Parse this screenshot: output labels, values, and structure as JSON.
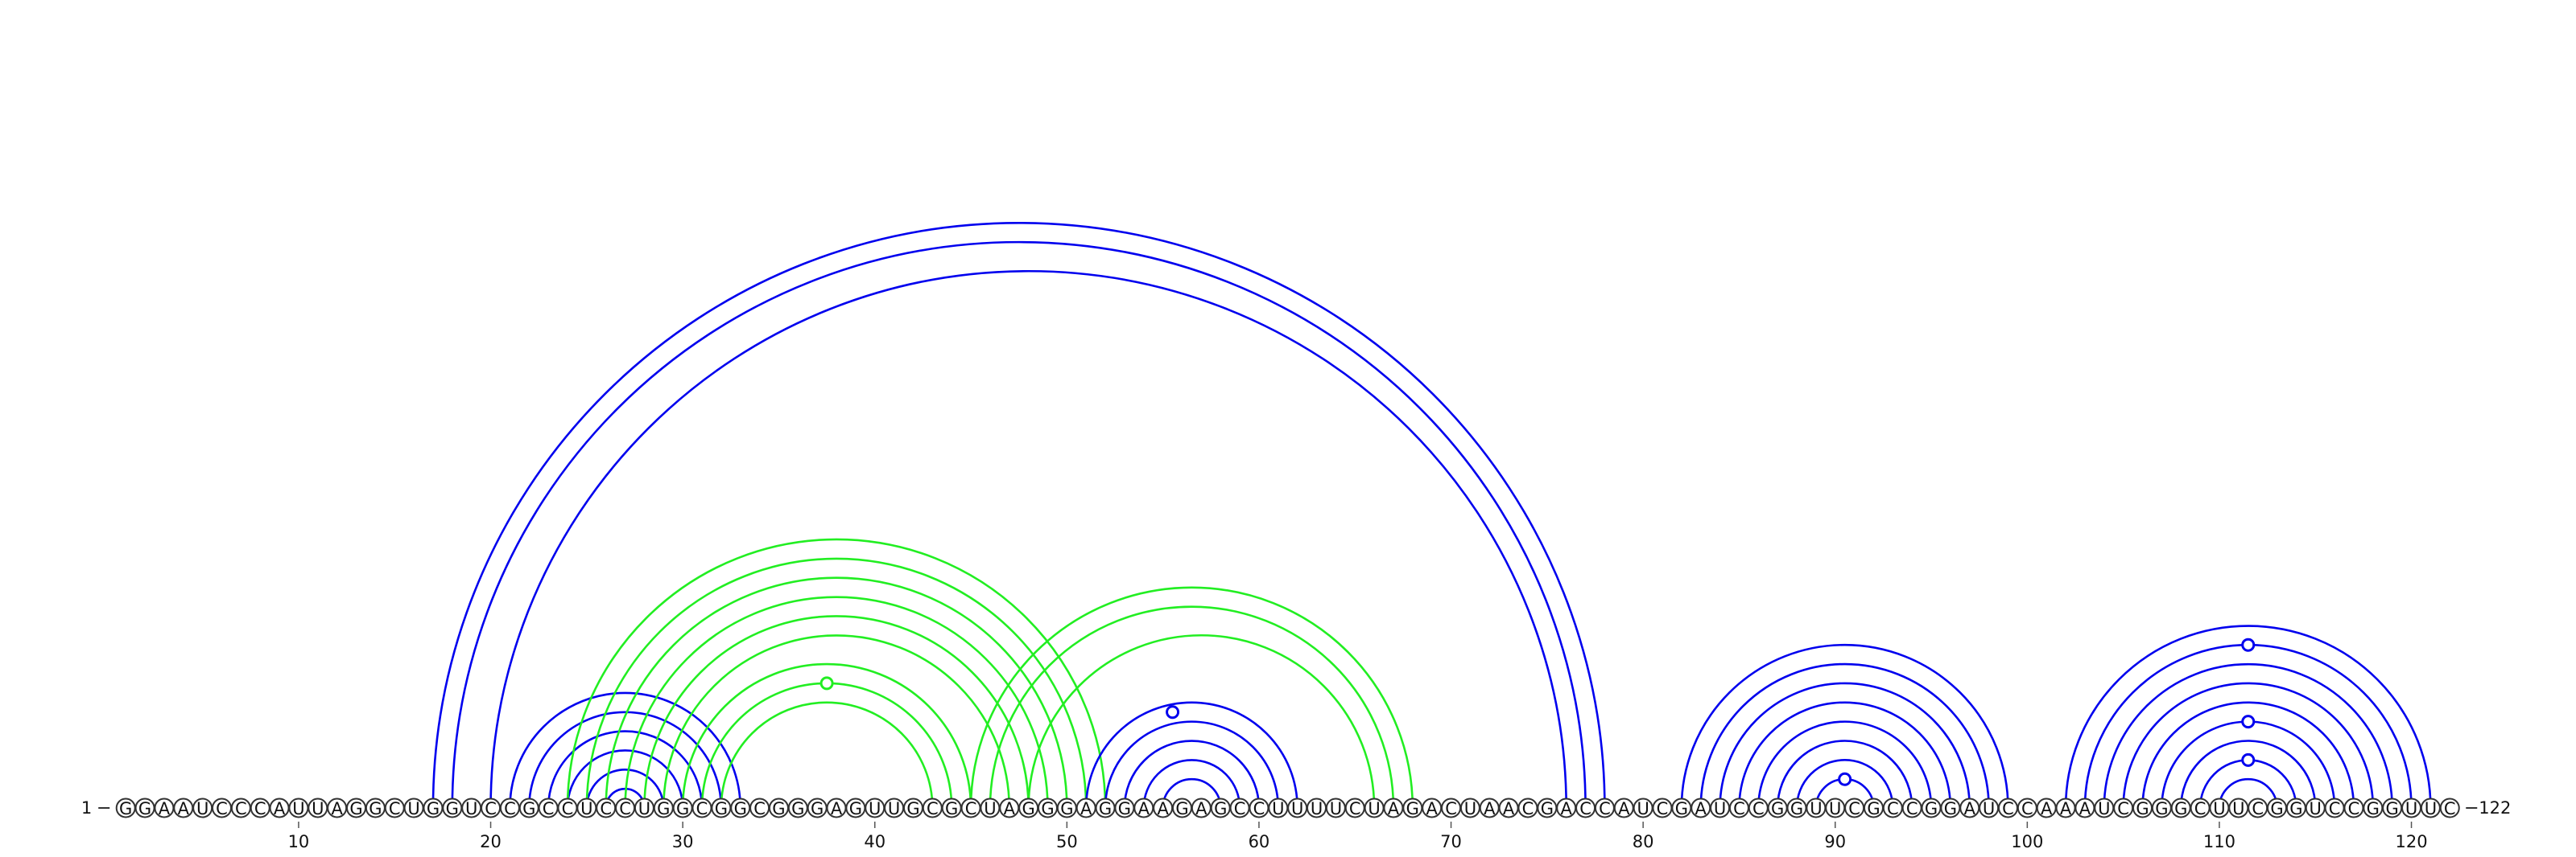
{
  "sequence": "GGAAUCCCAUUAGGCUGGUCCGCCUCCUGGCGGCGGGAGUUGCGCUAGGGAGGAAGAGCCUUUUCUAGACUAACGACCAUCGAUCCGGUUCGCCGGAUCCAAAUCGGGCUUCGGUCCGGUUC",
  "start_index": 1,
  "start_label": "1",
  "end_label": "122",
  "axis_ticks": [
    10,
    20,
    30,
    40,
    50,
    60,
    70,
    80,
    90,
    100,
    110,
    120
  ],
  "colors": {
    "blue": "#0000ee",
    "green": "#22ee22"
  },
  "arc_groups": [
    {
      "color": "blue",
      "pairs": [
        [
          17,
          78
        ],
        [
          18,
          77
        ],
        [
          20,
          76
        ]
      ]
    },
    {
      "color": "blue",
      "pairs": [
        [
          21,
          33
        ],
        [
          22,
          32
        ],
        [
          23,
          31
        ],
        [
          24,
          30
        ],
        [
          25,
          29
        ],
        [
          26,
          28
        ]
      ]
    },
    {
      "color": "green",
      "pairs": [
        [
          24,
          52
        ],
        [
          25,
          51
        ],
        [
          26,
          50
        ],
        [
          27,
          49
        ],
        [
          28,
          48
        ],
        [
          29,
          47
        ]
      ]
    },
    {
      "color": "green",
      "pairs": [
        [
          30,
          45
        ],
        [
          31,
          44
        ],
        [
          32,
          43
        ]
      ]
    },
    {
      "color": "green",
      "pairs": [
        [
          45,
          68
        ],
        [
          46,
          67
        ],
        [
          48,
          66
        ]
      ]
    },
    {
      "color": "blue",
      "pairs": [
        [
          51,
          62
        ],
        [
          52,
          61
        ],
        [
          53,
          60
        ],
        [
          54,
          59
        ],
        [
          55,
          58
        ]
      ]
    },
    {
      "color": "blue",
      "pairs": [
        [
          82,
          99
        ],
        [
          83,
          98
        ],
        [
          84,
          97
        ],
        [
          85,
          96
        ],
        [
          86,
          95
        ],
        [
          87,
          94
        ],
        [
          88,
          93
        ],
        [
          89,
          92
        ]
      ]
    },
    {
      "color": "blue",
      "pairs": [
        [
          102,
          121
        ],
        [
          103,
          120
        ],
        [
          104,
          119
        ],
        [
          105,
          118
        ],
        [
          106,
          117
        ],
        [
          107,
          116
        ],
        [
          108,
          115
        ],
        [
          109,
          114
        ],
        [
          110,
          113
        ]
      ]
    }
  ],
  "loop_markers": [
    {
      "color": "green",
      "a": 37,
      "b": 38,
      "span_ref": [
        31,
        44
      ]
    },
    {
      "color": "blue",
      "a": 55,
      "b": 56,
      "span_ref": [
        51,
        61
      ]
    },
    {
      "color": "blue",
      "a": 90,
      "b": 91,
      "span_ref": [
        89,
        92
      ]
    },
    {
      "color": "blue",
      "a": 111,
      "b": 112,
      "span_ref": [
        103,
        120
      ]
    },
    {
      "color": "blue",
      "a": 111,
      "b": 112,
      "span_ref": [
        107,
        116
      ]
    },
    {
      "color": "blue",
      "a": 111,
      "b": 112,
      "span_ref": [
        109,
        114
      ]
    }
  ]
}
